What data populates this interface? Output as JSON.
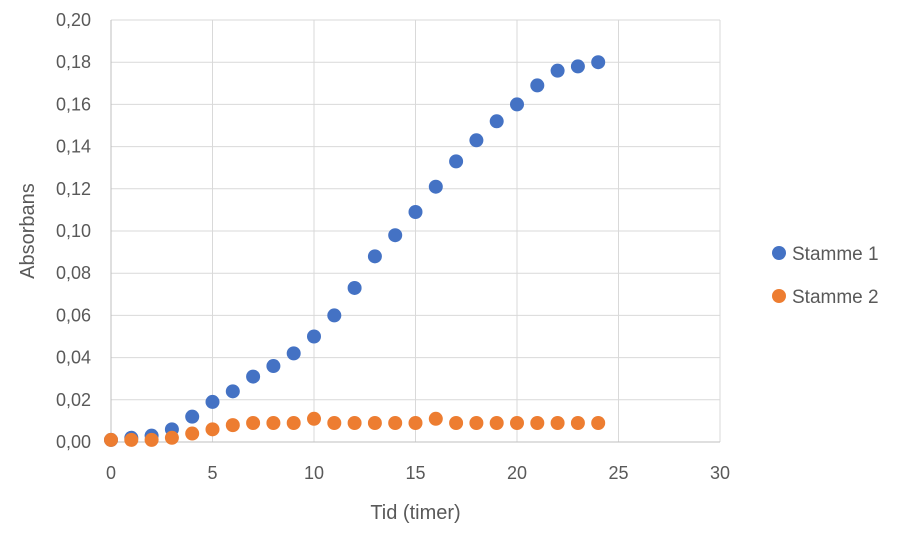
{
  "chart_data": {
    "type": "scatter",
    "title": "",
    "xlabel": "Tid (timer)",
    "ylabel": "Absorbans",
    "xlim": [
      0,
      30
    ],
    "ylim": [
      0,
      0.2
    ],
    "x_ticks": [
      "0",
      "5",
      "10",
      "15",
      "20",
      "25",
      "30"
    ],
    "y_ticks": [
      "0,00",
      "0,02",
      "0,04",
      "0,06",
      "0,08",
      "0,10",
      "0,12",
      "0,14",
      "0,16",
      "0,18",
      "0,20"
    ],
    "grid": true,
    "legend_position": "right",
    "x": [
      0,
      1,
      2,
      3,
      4,
      5,
      6,
      7,
      8,
      9,
      10,
      11,
      12,
      13,
      14,
      15,
      16,
      17,
      18,
      19,
      20,
      21,
      22,
      23,
      24
    ],
    "series": [
      {
        "name": "Stamme 1",
        "color": "#4472C4",
        "values": [
          0.001,
          0.002,
          0.003,
          0.006,
          0.012,
          0.019,
          0.024,
          0.031,
          0.036,
          0.042,
          0.05,
          0.06,
          0.073,
          0.088,
          0.098,
          0.109,
          0.121,
          0.133,
          0.143,
          0.152,
          0.16,
          0.169,
          0.176,
          0.178,
          0.18
        ]
      },
      {
        "name": "Stamme 2",
        "color": "#ED7D31",
        "values": [
          0.001,
          0.001,
          0.001,
          0.002,
          0.004,
          0.006,
          0.008,
          0.009,
          0.009,
          0.009,
          0.011,
          0.009,
          0.009,
          0.009,
          0.009,
          0.009,
          0.011,
          0.009,
          0.009,
          0.009,
          0.009,
          0.009,
          0.009,
          0.009,
          0.009
        ]
      }
    ]
  }
}
